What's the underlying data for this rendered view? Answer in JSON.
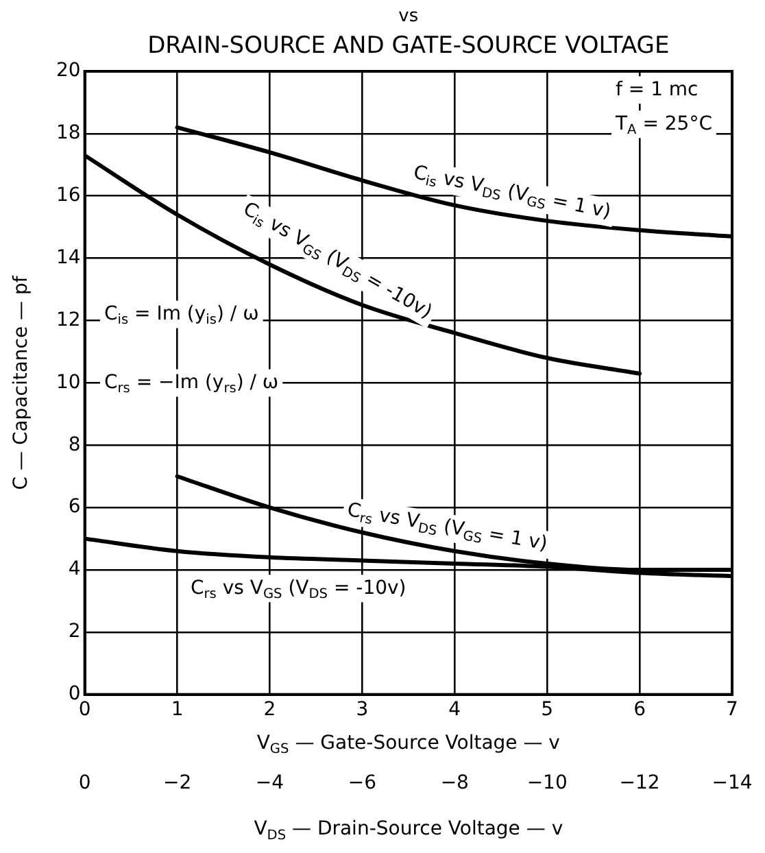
{
  "chart_data": {
    "type": "line",
    "title": "vs",
    "subtitle": "DRAIN-SOURCE AND GATE-SOURCE VOLTAGE",
    "xlabel": "V$_{GS}$ — Gate-Source Voltage — v",
    "x2label": "V$_{DS}$ — Drain-Source Voltage — v",
    "ylabel": "C — Capacitance — pf",
    "xlim": [
      0,
      7
    ],
    "xticks": [
      0,
      1,
      2,
      3,
      4,
      5,
      6,
      7
    ],
    "x2lim": [
      0,
      -14
    ],
    "x2ticks": [
      0,
      -2,
      -4,
      -6,
      -8,
      -10,
      -12,
      -14
    ],
    "ylim": [
      0,
      20
    ],
    "yticks": [
      0,
      2,
      4,
      6,
      8,
      10,
      12,
      14,
      16,
      18,
      20
    ],
    "grid": true,
    "legend": false,
    "marker": "none",
    "line_style": "solid",
    "series": [
      {
        "name": "C$_{is}$ vs V$_{DS}$ (V$_{GS}$ = 1 v)",
        "color": "#000000",
        "axis": "x2",
        "x": [
          -2,
          -4,
          -6,
          -8,
          -10,
          -12,
          -14
        ],
        "values": [
          18.2,
          17.4,
          16.5,
          15.7,
          15.2,
          14.9,
          14.7
        ]
      },
      {
        "name": "C$_{is}$ vs V$_{GS}$ (V$_{DS}$ = -10v)",
        "color": "#000000",
        "x": [
          0,
          1,
          2,
          3,
          4,
          5,
          6
        ],
        "values": [
          17.3,
          15.4,
          13.8,
          12.5,
          11.6,
          10.8,
          10.3
        ]
      },
      {
        "name": "C$_{rs}$ vs V$_{DS}$ (V$_{GS}$ = 1 v)",
        "color": "#000000",
        "axis": "x2",
        "x": [
          -2,
          -4,
          -6,
          -8,
          -10,
          -12,
          -14
        ],
        "values": [
          7.0,
          6.0,
          5.2,
          4.6,
          4.2,
          4.0,
          4.0
        ]
      },
      {
        "name": "C$_{rs}$ vs V$_{GS}$ (V$_{DS}$ = -10v)",
        "color": "#000000",
        "x": [
          0,
          1,
          2,
          3,
          4,
          5,
          6,
          7
        ],
        "values": [
          5.0,
          4.6,
          4.4,
          4.3,
          4.2,
          4.1,
          3.9,
          3.8
        ]
      }
    ],
    "annotations": [
      "f = 1 mc",
      "T$_{A}$ = 25°C",
      "C$_{is}$ = Im (y$_{is}$) / ω",
      "C$_{rs}$ = −Im (y$_{rs}$) / ω"
    ]
  }
}
